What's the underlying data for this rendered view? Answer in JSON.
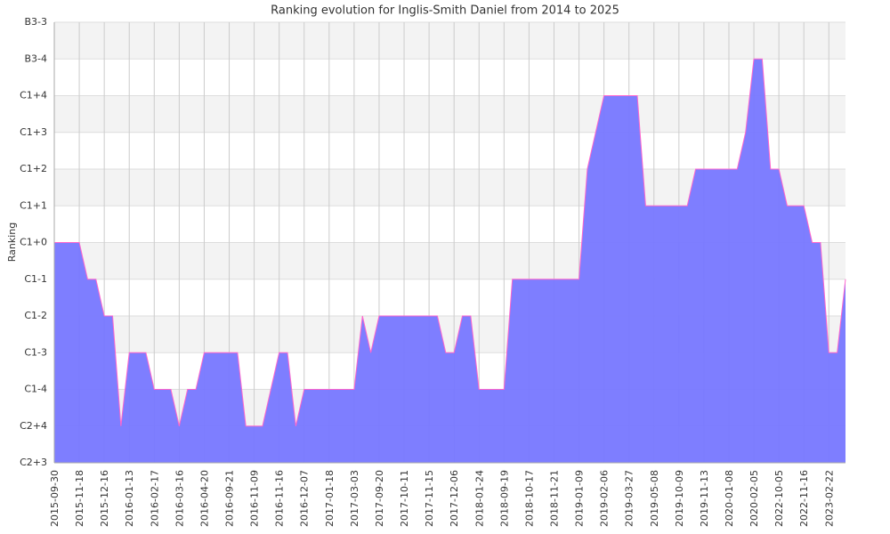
{
  "chart_data": {
    "type": "area",
    "title": "Ranking evolution for Inglis-Smith Daniel from 2014 to 2025",
    "y_label": "Ranking",
    "categories": [
      "2015-09-30",
      null,
      null,
      "2015-11-18",
      null,
      null,
      "2015-12-16",
      null,
      null,
      "2016-01-13",
      null,
      null,
      "2016-02-17",
      null,
      null,
      "2016-03-16",
      null,
      null,
      "2016-04-20",
      null,
      null,
      "2016-09-21",
      null,
      null,
      "2016-11-09",
      null,
      null,
      "2016-11-16",
      null,
      null,
      "2016-12-07",
      null,
      null,
      "2017-01-18",
      null,
      null,
      "2017-03-03",
      null,
      null,
      "2017-09-20",
      null,
      null,
      "2017-10-11",
      null,
      null,
      "2017-11-15",
      null,
      null,
      "2017-12-06",
      null,
      null,
      "2018-01-24",
      null,
      null,
      "2018-09-19",
      null,
      null,
      "2018-10-17",
      null,
      null,
      "2018-11-21",
      null,
      null,
      "2019-01-09",
      null,
      null,
      "2019-02-06",
      null,
      null,
      "2019-03-27",
      null,
      null,
      "2019-05-08",
      null,
      null,
      "2019-10-09",
      null,
      null,
      "2019-11-13",
      null,
      null,
      "2020-01-08",
      null,
      null,
      "2020-02-05",
      null,
      null,
      "2022-10-05",
      null,
      null,
      "2022-11-16",
      null,
      null,
      "2023-02-22",
      null,
      null
    ],
    "values": [
      6,
      6,
      6,
      6,
      5,
      5,
      4,
      4,
      1,
      3,
      3,
      3,
      2,
      2,
      2,
      1,
      2,
      2,
      3,
      3,
      3,
      3,
      3,
      1,
      1,
      1,
      2,
      3,
      3,
      1,
      2,
      2,
      2,
      2,
      2,
      2,
      2,
      4,
      3,
      4,
      4,
      4,
      4,
      4,
      4,
      4,
      4,
      3,
      3,
      4,
      4,
      2,
      2,
      2,
      2,
      5,
      5,
      5,
      5,
      5,
      5,
      5,
      5,
      5,
      8,
      9,
      10,
      10,
      10,
      10,
      10,
      7,
      7,
      7,
      7,
      7,
      7,
      8,
      8,
      8,
      8,
      8,
      8,
      9,
      11,
      11,
      8,
      8,
      7,
      7,
      7,
      6,
      6,
      3,
      3,
      5
    ],
    "ylim": [
      0,
      12
    ],
    "yticks": [
      {
        "value": 0,
        "label": "C2+3"
      },
      {
        "value": 1,
        "label": "C2+4"
      },
      {
        "value": 2,
        "label": "C1-4"
      },
      {
        "value": 3,
        "label": "C1-3"
      },
      {
        "value": 4,
        "label": "C1-2"
      },
      {
        "value": 5,
        "label": "C1-1"
      },
      {
        "value": 6,
        "label": "C1+0"
      },
      {
        "value": 7,
        "label": "C1+1"
      },
      {
        "value": 8,
        "label": "C1+2"
      },
      {
        "value": 9,
        "label": "C1+3"
      },
      {
        "value": 10,
        "label": "C1+4"
      },
      {
        "value": 11,
        "label": "B3-4"
      },
      {
        "value": 12,
        "label": "B3-3"
      }
    ],
    "color": "#7777ff",
    "line_color": "#ff66cc",
    "grid": true
  }
}
